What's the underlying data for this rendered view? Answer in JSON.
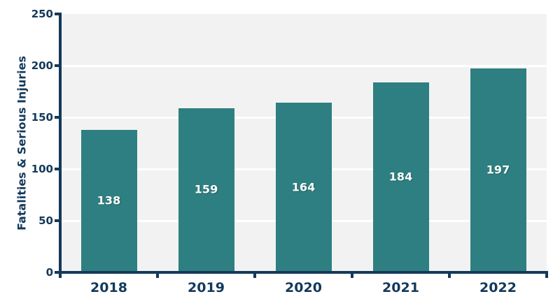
{
  "chart_data": {
    "type": "bar",
    "categories": [
      "2018",
      "2019",
      "2020",
      "2021",
      "2022"
    ],
    "values": [
      138,
      159,
      164,
      184,
      197
    ],
    "bar_value_labels": [
      "138",
      "159",
      "164",
      "184",
      "197"
    ],
    "xlabel": "",
    "ylabel": "Fatalities & Serious Injuries",
    "ylim": [
      0,
      250
    ],
    "yticks": [
      0,
      50,
      100,
      150,
      200,
      250
    ],
    "gridlines_at": [
      50,
      100,
      150,
      200
    ],
    "grid": "horizontal",
    "legend": "none",
    "colors": {
      "bar": "#2E7F81",
      "axis": "#14395A",
      "tick_label": "#14395A",
      "bar_label": "#FFFFFF",
      "plot_background": "#F2F2F2",
      "gridline": "#FFFFFF",
      "page_background": "#FFFFFF"
    }
  }
}
